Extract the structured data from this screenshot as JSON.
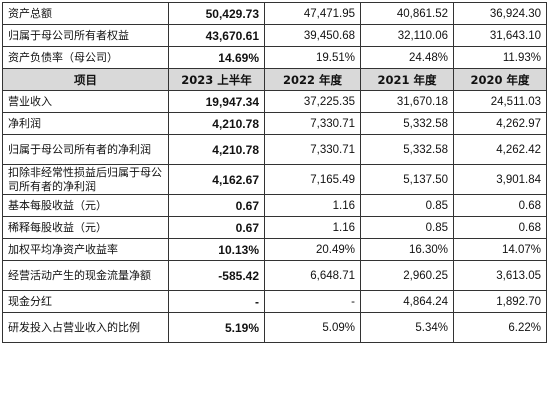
{
  "table": {
    "header": [
      "项目",
      "2023 上半年",
      "2022 年度",
      "2021 年度",
      "2020 年度"
    ],
    "rows_top": [
      {
        "label": "资产总额",
        "v": [
          "50,429.73",
          "47,471.95",
          "40,861.52",
          "36,924.30"
        ]
      },
      {
        "label": "归属于母公司所有者权益",
        "v": [
          "43,670.61",
          "39,450.68",
          "32,110.06",
          "31,643.10"
        ]
      },
      {
        "label": "资产负债率（母公司）",
        "v": [
          "14.69%",
          "19.51%",
          "24.48%",
          "11.93%"
        ]
      }
    ],
    "rows_bottom": [
      {
        "label": "营业收入",
        "v": [
          "19,947.34",
          "37,225.35",
          "31,670.18",
          "24,511.03"
        ]
      },
      {
        "label": "净利润",
        "v": [
          "4,210.78",
          "7,330.71",
          "5,332.58",
          "4,262.97"
        ]
      },
      {
        "label": "归属于母公司所有者的净利润",
        "v": [
          "4,210.78",
          "7,330.71",
          "5,332.58",
          "4,262.42"
        ]
      },
      {
        "label": "扣除非经常性损益后归属于母公司所有者的净利润",
        "v": [
          "4,162.67",
          "7,165.49",
          "5,137.50",
          "3,901.84"
        ]
      },
      {
        "label": "基本每股收益（元）",
        "v": [
          "0.67",
          "1.16",
          "0.85",
          "0.68"
        ]
      },
      {
        "label": "稀释每股收益（元）",
        "v": [
          "0.67",
          "1.16",
          "0.85",
          "0.68"
        ]
      },
      {
        "label": "加权平均净资产收益率",
        "v": [
          "10.13%",
          "20.49%",
          "16.30%",
          "14.07%"
        ]
      },
      {
        "label": "经营活动产生的现金流量净额",
        "v": [
          "-585.42",
          "6,648.71",
          "2,960.25",
          "3,613.05"
        ]
      },
      {
        "label": "现金分红",
        "v": [
          "-",
          "-",
          "4,864.24",
          "1,892.70"
        ]
      },
      {
        "label": "研发投入占营业收入的比例",
        "v": [
          "5.19%",
          "5.09%",
          "5.34%",
          "6.22%"
        ]
      }
    ]
  }
}
